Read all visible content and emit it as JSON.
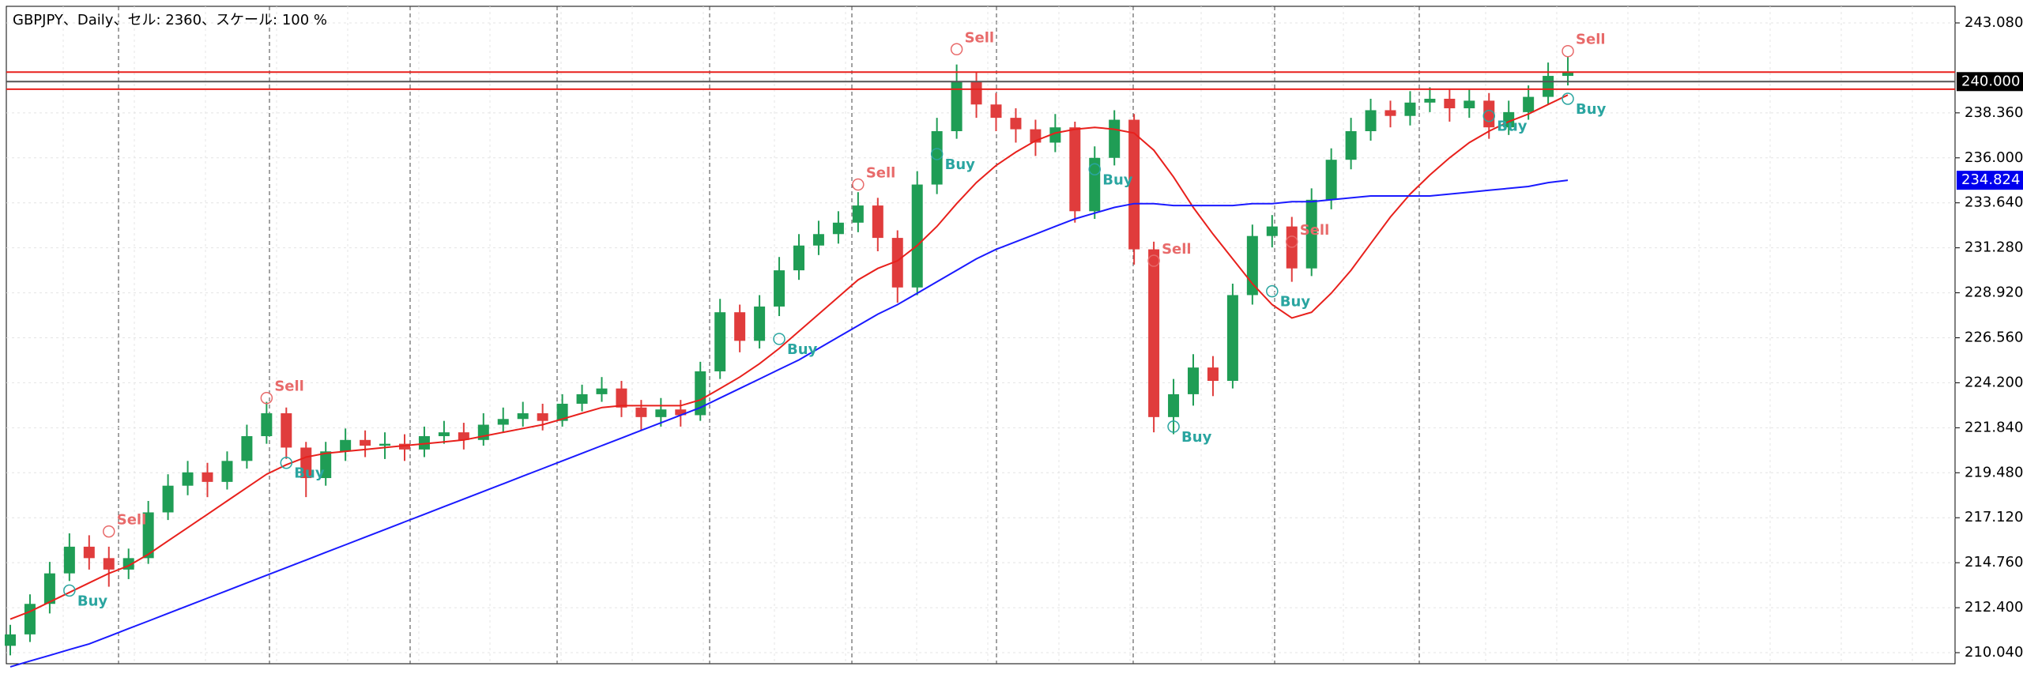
{
  "chart_data": {
    "type": "candlestick",
    "title": "GBPJPY、Daily、セル: 2360、スケール: 100 %",
    "ylim": [
      209.46,
      243.95
    ],
    "yticks": [
      {
        "value": 243.08,
        "label": "243.080"
      },
      {
        "value": 238.36,
        "label": "238.360"
      },
      {
        "value": 236,
        "label": "236.000"
      },
      {
        "value": 233.64,
        "label": "233.640"
      },
      {
        "value": 231.28,
        "label": "231.280"
      },
      {
        "value": 228.92,
        "label": "228.920"
      },
      {
        "value": 226.56,
        "label": "226.560"
      },
      {
        "value": 224.2,
        "label": "224.200"
      },
      {
        "value": 221.84,
        "label": "221.840"
      },
      {
        "value": 219.48,
        "label": "219.480"
      },
      {
        "value": 217.12,
        "label": "217.120"
      },
      {
        "value": 214.76,
        "label": "214.760"
      },
      {
        "value": 212.4,
        "label": "212.400"
      },
      {
        "value": 210.04,
        "label": "210.040"
      }
    ],
    "grid": true,
    "up_color": "#1f9d55",
    "down_color": "#e03c3c",
    "open": [
      210.4,
      211.0,
      212.6,
      214.2,
      215.6,
      215.0,
      214.4,
      215.0,
      217.4,
      218.8,
      219.5,
      219.0,
      220.1,
      221.4,
      222.6,
      220.8,
      219.2,
      220.6,
      221.2,
      220.9,
      221.0,
      220.7,
      221.4,
      221.6,
      221.2,
      222.0,
      222.3,
      222.6,
      222.2,
      223.1,
      223.6,
      223.9,
      222.9,
      222.4,
      222.8,
      222.5,
      224.8,
      227.9,
      226.4,
      228.2,
      230.1,
      231.4,
      232.0,
      232.6,
      233.5,
      231.8,
      229.2,
      234.6,
      237.4,
      240.0,
      238.8,
      238.1,
      237.5,
      236.8,
      237.6,
      233.2,
      236.0,
      238.0,
      231.2,
      222.4,
      223.6,
      225.0,
      224.3,
      228.8,
      231.9,
      232.4,
      230.2,
      233.8,
      235.9,
      237.4,
      238.5,
      238.2,
      238.9,
      239.1,
      238.6,
      239.0,
      237.6,
      238.4,
      239.2,
      240.3
    ],
    "high": [
      211.5,
      213.1,
      214.8,
      216.3,
      216.2,
      215.6,
      215.5,
      218.0,
      219.4,
      220.1,
      220.0,
      220.6,
      222.0,
      223.2,
      222.9,
      221.1,
      221.1,
      221.8,
      221.7,
      221.6,
      221.5,
      221.9,
      222.2,
      222.1,
      222.6,
      222.9,
      223.2,
      223.1,
      223.6,
      224.1,
      224.5,
      224.3,
      223.3,
      223.4,
      223.3,
      225.3,
      228.6,
      228.3,
      228.8,
      230.8,
      232.0,
      232.7,
      233.2,
      234.2,
      233.9,
      232.2,
      235.3,
      238.1,
      240.9,
      240.5,
      239.4,
      238.6,
      238.0,
      238.3,
      237.9,
      236.6,
      238.5,
      238.3,
      231.6,
      224.4,
      225.7,
      225.6,
      229.4,
      232.5,
      233.0,
      232.9,
      234.4,
      236.5,
      238.1,
      239.1,
      239.0,
      239.5,
      239.7,
      239.6,
      239.6,
      239.4,
      239.0,
      239.8,
      241.0,
      241.3
    ],
    "low": [
      209.9,
      210.6,
      212.1,
      213.8,
      214.4,
      213.5,
      213.9,
      214.7,
      217.0,
      218.3,
      218.2,
      218.6,
      219.7,
      221.0,
      220.2,
      218.2,
      218.8,
      220.1,
      220.3,
      220.2,
      220.1,
      220.3,
      221.0,
      220.7,
      220.9,
      221.6,
      221.9,
      221.7,
      221.9,
      222.7,
      223.2,
      222.4,
      221.7,
      221.9,
      221.9,
      222.2,
      224.4,
      225.8,
      226.0,
      227.7,
      229.6,
      230.9,
      231.5,
      232.1,
      231.1,
      228.4,
      228.8,
      234.1,
      237.0,
      238.1,
      237.4,
      236.8,
      236.1,
      236.3,
      232.6,
      232.8,
      235.6,
      230.4,
      221.6,
      221.5,
      223.0,
      223.5,
      223.9,
      228.3,
      231.3,
      229.5,
      229.8,
      233.3,
      235.4,
      236.9,
      237.6,
      237.7,
      238.4,
      237.9,
      238.1,
      237.0,
      237.2,
      238.0,
      238.8,
      239.8
    ],
    "close": [
      211.0,
      212.6,
      214.2,
      215.6,
      215.0,
      214.4,
      215.0,
      217.4,
      218.8,
      219.5,
      219.0,
      220.1,
      221.4,
      222.6,
      220.8,
      219.2,
      220.6,
      221.2,
      220.9,
      221.0,
      220.7,
      221.4,
      221.6,
      221.2,
      222.0,
      222.3,
      222.6,
      222.2,
      223.1,
      223.6,
      223.9,
      222.9,
      222.4,
      222.8,
      222.5,
      224.8,
      227.9,
      226.4,
      228.2,
      230.1,
      231.4,
      232.0,
      232.6,
      233.5,
      231.8,
      229.2,
      234.6,
      237.4,
      240.0,
      238.8,
      238.1,
      237.5,
      236.8,
      237.6,
      233.2,
      236.0,
      238.0,
      231.2,
      222.4,
      223.6,
      225.0,
      224.3,
      228.8,
      231.9,
      232.4,
      230.2,
      233.8,
      235.9,
      237.4,
      238.5,
      238.2,
      238.9,
      239.1,
      238.6,
      239.0,
      237.6,
      238.4,
      239.2,
      240.3,
      240.5
    ],
    "series": [
      {
        "color": "#e8201c",
        "values": [
          211.8,
          212.2,
          212.7,
          213.2,
          213.7,
          214.2,
          214.6,
          215.2,
          215.9,
          216.6,
          217.3,
          218.0,
          218.7,
          219.4,
          219.9,
          220.3,
          220.5,
          220.6,
          220.7,
          220.8,
          220.9,
          221.0,
          221.1,
          221.2,
          221.4,
          221.6,
          221.8,
          222.0,
          222.3,
          222.6,
          222.9,
          223.0,
          223.0,
          223.0,
          223.0,
          223.3,
          223.9,
          224.5,
          225.2,
          226.0,
          226.9,
          227.8,
          228.7,
          229.6,
          230.2,
          230.6,
          231.4,
          232.4,
          233.6,
          234.7,
          235.6,
          236.3,
          236.9,
          237.3,
          237.5,
          237.6,
          237.5,
          237.3,
          236.4,
          235.0,
          233.4,
          232.0,
          230.7,
          229.4,
          228.3,
          227.6,
          227.9,
          228.9,
          230.1,
          231.5,
          232.9,
          234.1,
          235.1,
          236.0,
          236.8,
          237.4,
          237.9,
          238.3,
          238.8,
          239.3
        ]
      },
      {
        "color": "#1a1aff",
        "values": [
          209.3,
          209.6,
          209.9,
          210.2,
          210.5,
          210.9,
          211.3,
          211.7,
          212.1,
          212.5,
          212.9,
          213.3,
          213.7,
          214.1,
          214.5,
          214.9,
          215.3,
          215.7,
          216.1,
          216.5,
          216.9,
          217.3,
          217.7,
          218.1,
          218.5,
          218.9,
          219.3,
          219.7,
          220.1,
          220.5,
          220.9,
          221.3,
          221.7,
          222.1,
          222.5,
          222.9,
          223.4,
          223.9,
          224.4,
          224.9,
          225.4,
          226.0,
          226.6,
          227.2,
          227.8,
          228.3,
          228.9,
          229.5,
          230.1,
          230.7,
          231.2,
          231.6,
          232.0,
          232.4,
          232.8,
          233.1,
          233.4,
          233.6,
          233.6,
          233.5,
          233.5,
          233.5,
          233.5,
          233.6,
          233.6,
          233.7,
          233.7,
          233.8,
          233.9,
          234.0,
          234.0,
          234.0,
          234.0,
          234.1,
          234.2,
          234.3,
          234.4,
          234.5,
          234.7,
          234.824
        ]
      }
    ],
    "levels": [
      {
        "value": 240.5,
        "color": "#e8201c"
      },
      {
        "value": 240,
        "color": "#555555"
      },
      {
        "value": 239.6,
        "color": "#e8201c"
      }
    ],
    "price_labels": [
      {
        "value": 240,
        "label": "240.000",
        "color": "#000000"
      },
      {
        "value": 234.824,
        "label": "234.824",
        "color": "#0000ee"
      }
    ],
    "signals": [
      {
        "label": "Buy",
        "x": 3,
        "price": 213.3,
        "color": "#2aa5a0"
      },
      {
        "label": "Sell",
        "x": 5,
        "price": 216.4,
        "color": "#e86a6a"
      },
      {
        "label": "Sell",
        "x": 13,
        "price": 223.4,
        "color": "#e86a6a"
      },
      {
        "label": "Buy",
        "x": 14,
        "price": 220.0,
        "color": "#2aa5a0"
      },
      {
        "label": "Buy",
        "x": 39,
        "price": 226.5,
        "color": "#2aa5a0"
      },
      {
        "label": "Sell",
        "x": 43,
        "price": 234.6,
        "color": "#e86a6a"
      },
      {
        "label": "Sell",
        "x": 48,
        "price": 241.7,
        "color": "#e86a6a"
      },
      {
        "label": "Buy",
        "x": 47,
        "price": 236.2,
        "color": "#2aa5a0"
      },
      {
        "label": "Buy",
        "x": 55,
        "price": 235.4,
        "color": "#2aa5a0"
      },
      {
        "label": "Sell",
        "x": 58,
        "price": 230.6,
        "color": "#e86a6a"
      },
      {
        "label": "Buy",
        "x": 59,
        "price": 221.9,
        "color": "#2aa5a0"
      },
      {
        "label": "Sell",
        "x": 65,
        "price": 231.6,
        "color": "#e86a6a"
      },
      {
        "label": "Buy",
        "x": 64,
        "price": 229.0,
        "color": "#2aa5a0"
      },
      {
        "label": "Buy",
        "x": 75,
        "price": 238.2,
        "color": "#2aa5a0"
      },
      {
        "label": "Sell",
        "x": 79,
        "price": 241.6,
        "color": "#e86a6a"
      },
      {
        "label": "Buy",
        "x": 79,
        "price": 239.1,
        "color": "#2aa5a0"
      }
    ]
  }
}
